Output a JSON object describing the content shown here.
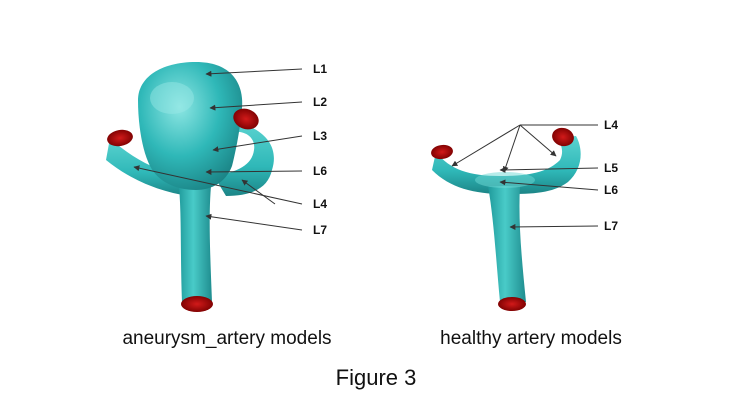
{
  "figure": {
    "caption": "Figure 3",
    "colors": {
      "vessel": "#2fb8b8",
      "vessel_dark": "#1f8d8f",
      "vessel_light": "#7fe0de",
      "cap": "#c00000",
      "cap_dark": "#7a0000"
    },
    "aneurysm_model": {
      "title": "aneurysm_artery models",
      "labels": [
        "L1",
        "L2",
        "L3",
        "L6",
        "L4",
        "L7"
      ]
    },
    "healthy_model": {
      "title": "healthy artery models",
      "labels": [
        "L4",
        "L5",
        "L6",
        "L7"
      ]
    }
  }
}
